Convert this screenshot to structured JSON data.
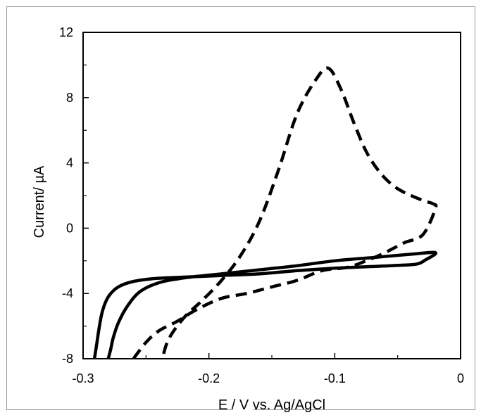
{
  "chart_data": {
    "type": "line",
    "title": "",
    "xlabel": "E / V vs. Ag/AgCl",
    "ylabel": "Current/ µA",
    "xlim": [
      -0.3,
      0
    ],
    "ylim": [
      -8,
      12
    ],
    "x_ticks": [
      -0.3,
      -0.2,
      -0.1,
      0
    ],
    "x_tick_labels": [
      "-0.3",
      "-0.2",
      "-0.1",
      "0"
    ],
    "y_ticks": [
      -8,
      -4,
      0,
      4,
      8,
      12
    ],
    "y_tick_labels": [
      "-8",
      "-4",
      "0",
      "4",
      "8",
      "12"
    ],
    "grid": false,
    "legend": "none",
    "series": [
      {
        "style": "solid",
        "color": "#000000",
        "x": [
          -0.291,
          -0.289,
          -0.287,
          -0.285,
          -0.282,
          -0.278,
          -0.272,
          -0.262,
          -0.245,
          -0.22,
          -0.19,
          -0.16,
          -0.13,
          -0.1,
          -0.07,
          -0.05,
          -0.035,
          -0.028,
          -0.02,
          -0.04,
          -0.07,
          -0.1,
          -0.13,
          -0.16,
          -0.19,
          -0.22,
          -0.24,
          -0.255,
          -0.265,
          -0.272,
          -0.276,
          -0.278,
          -0.28
        ],
        "y": [
          -8.0,
          -7.0,
          -6.0,
          -5.2,
          -4.5,
          -4.0,
          -3.6,
          -3.3,
          -3.1,
          -3.0,
          -2.9,
          -2.8,
          -2.6,
          -2.45,
          -2.35,
          -2.28,
          -2.2,
          -1.95,
          -1.5,
          -1.6,
          -1.8,
          -2.0,
          -2.3,
          -2.55,
          -2.8,
          -3.05,
          -3.35,
          -3.9,
          -4.8,
          -5.8,
          -6.7,
          -7.4,
          -8.0
        ]
      },
      {
        "style": "dashed",
        "color": "#000000",
        "x": [
          -0.26,
          -0.25,
          -0.24,
          -0.225,
          -0.21,
          -0.19,
          -0.17,
          -0.15,
          -0.13,
          -0.11,
          -0.09,
          -0.075,
          -0.06,
          -0.045,
          -0.03,
          -0.02,
          -0.022,
          -0.03,
          -0.045,
          -0.055,
          -0.065,
          -0.075,
          -0.085,
          -0.095,
          -0.105,
          -0.115,
          -0.13,
          -0.145,
          -0.16,
          -0.175,
          -0.19,
          -0.205,
          -0.22,
          -0.232,
          -0.237
        ],
        "y": [
          -8.0,
          -7.0,
          -6.3,
          -5.7,
          -5.0,
          -4.3,
          -4.0,
          -3.6,
          -3.2,
          -2.6,
          -2.4,
          -2.0,
          -1.5,
          -0.9,
          -0.4,
          1.2,
          1.5,
          1.7,
          2.2,
          2.7,
          3.5,
          4.7,
          6.5,
          8.5,
          9.8,
          9.1,
          7.0,
          3.5,
          0.4,
          -1.7,
          -3.2,
          -4.4,
          -5.5,
          -6.8,
          -8.0
        ]
      }
    ]
  }
}
